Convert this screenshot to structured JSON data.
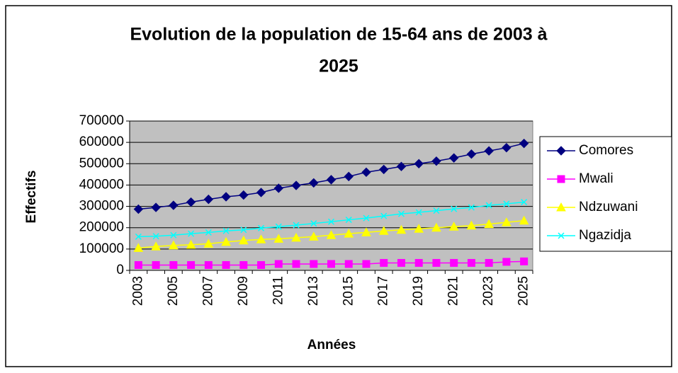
{
  "chart_data": {
    "type": "line",
    "title": [
      "Evolution de la population de 15-64 ans de 2003 à",
      "2025"
    ],
    "x_label": "Années",
    "y_label": "Effectifs",
    "categories": [
      "2003",
      null,
      "2005",
      null,
      "2007",
      null,
      "2009",
      null,
      "2011",
      null,
      "2013",
      null,
      "2015",
      null,
      "2017",
      null,
      "2019",
      null,
      "2021",
      null,
      "2023",
      null,
      "2025"
    ],
    "series": [
      {
        "name": "Comores",
        "color": "#000080",
        "marker": "diamond",
        "values": [
          287000,
          295000,
          305000,
          320000,
          333000,
          345000,
          353000,
          365000,
          385000,
          398000,
          410000,
          425000,
          440000,
          460000,
          473000,
          487000,
          500000,
          512000,
          527000,
          545000,
          560000,
          575000,
          595000
        ]
      },
      {
        "name": "Mwali",
        "color": "#ff00ff",
        "marker": "square",
        "values": [
          25000,
          25000,
          25000,
          25000,
          25000,
          25000,
          25000,
          25000,
          30000,
          30000,
          30000,
          30000,
          30000,
          30000,
          35000,
          35000,
          35000,
          35000,
          35000,
          35000,
          35000,
          40000,
          42000
        ]
      },
      {
        "name": "Ndzuwani",
        "color": "#ffff00",
        "marker": "triangle",
        "values": [
          105000,
          112000,
          117000,
          120000,
          125000,
          133000,
          140000,
          145000,
          148000,
          153000,
          158000,
          165000,
          172000,
          178000,
          185000,
          190000,
          195000,
          200000,
          205000,
          210000,
          217000,
          225000,
          233000
        ]
      },
      {
        "name": "Ngazidja",
        "color": "#00ffff",
        "marker": "x",
        "values": [
          158000,
          160000,
          165000,
          172000,
          178000,
          185000,
          190000,
          198000,
          205000,
          212000,
          220000,
          228000,
          237000,
          245000,
          255000,
          265000,
          272000,
          280000,
          288000,
          295000,
          305000,
          312000,
          320000
        ]
      }
    ],
    "ylim": [
      0,
      700000
    ],
    "yticks": [
      0,
      100000,
      200000,
      300000,
      400000,
      500000,
      600000,
      700000
    ],
    "grid": true,
    "legend": "right"
  }
}
